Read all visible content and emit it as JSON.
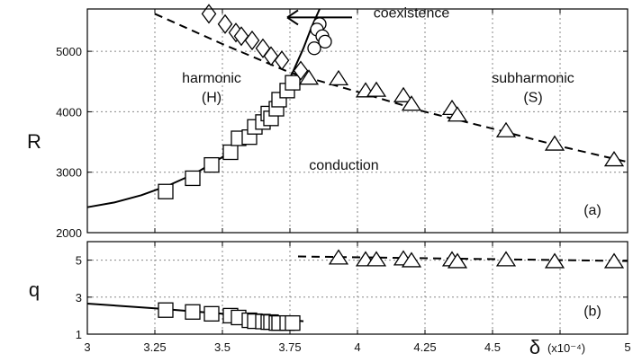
{
  "chart_data": [
    {
      "panel": "top",
      "type": "scatter",
      "ylabel": "R",
      "panel_label": "(a)",
      "xlim": [
        3.0,
        5.0
      ],
      "ylim": [
        2000,
        5700
      ],
      "x_ticks": [
        3,
        3.25,
        3.5,
        3.75,
        4,
        4.25,
        4.5,
        4.75,
        5
      ],
      "y_ticks": [
        2000,
        3000,
        4000,
        5000
      ],
      "grid": true,
      "annotations": [
        {
          "text": "coexistence",
          "x": 4.2,
          "y": 5560
        },
        {
          "text": "harmonic",
          "x": 3.46,
          "y": 4480
        },
        {
          "text": "(H)",
          "x": 3.46,
          "y": 4160
        },
        {
          "text": "subharmonic",
          "x": 4.65,
          "y": 4480
        },
        {
          "text": "(S)",
          "x": 4.65,
          "y": 4160
        },
        {
          "text": "conduction",
          "x": 3.95,
          "y": 3040
        }
      ],
      "series": [
        {
          "marker": "square",
          "x": [
            3.29,
            3.39,
            3.46,
            3.53,
            3.56,
            3.6,
            3.62,
            3.65,
            3.67,
            3.68,
            3.7,
            3.71,
            3.74,
            3.76
          ],
          "y": [
            2680,
            2900,
            3120,
            3330,
            3560,
            3580,
            3750,
            3830,
            3970,
            3890,
            4050,
            4200,
            4350,
            4480
          ]
        },
        {
          "marker": "diamond",
          "x": [
            3.45,
            3.51,
            3.55,
            3.57,
            3.61,
            3.65,
            3.68,
            3.72,
            3.79
          ],
          "y": [
            5620,
            5450,
            5310,
            5250,
            5180,
            5050,
            4920,
            4850,
            4680
          ]
        },
        {
          "marker": "circle",
          "x": [
            3.86,
            3.85,
            3.87,
            3.88,
            3.84
          ],
          "y": [
            5450,
            5360,
            5250,
            5160,
            5050
          ]
        },
        {
          "marker": "triangle",
          "x": [
            3.82,
            3.93,
            4.03,
            4.07,
            4.17,
            4.2,
            4.35,
            4.37,
            4.55,
            4.73,
            4.95
          ],
          "y": [
            4550,
            4540,
            4340,
            4350,
            4260,
            4120,
            4050,
            3940,
            3680,
            3460,
            3200
          ]
        }
      ],
      "curves": [
        {
          "style": "solid",
          "x": [
            3.0,
            3.1,
            3.2,
            3.3,
            3.4,
            3.5,
            3.6,
            3.7,
            3.76,
            3.8,
            3.83,
            3.86
          ],
          "y": [
            2420,
            2500,
            2620,
            2780,
            2980,
            3250,
            3650,
            4180,
            4650,
            5050,
            5400,
            5700
          ]
        },
        {
          "style": "dashed",
          "x": [
            3.25,
            3.5,
            3.75,
            4.0,
            4.25,
            4.5,
            4.75,
            5.0
          ],
          "y": [
            5620,
            5120,
            4650,
            4330,
            4000,
            3720,
            3430,
            3170
          ]
        },
        {
          "style": "arrow",
          "x": [
            3.98,
            3.74
          ],
          "y": [
            5560,
            5560
          ]
        }
      ]
    },
    {
      "panel": "bottom",
      "type": "scatter",
      "ylabel": "q",
      "panel_label": "(b)",
      "xlim": [
        3.0,
        5.0
      ],
      "ylim": [
        1,
        6
      ],
      "x_ticks": [
        3,
        3.25,
        3.5,
        3.75,
        4,
        4.25,
        4.5,
        4.75,
        5
      ],
      "y_ticks": [
        1,
        3,
        5
      ],
      "x_tick_labels": [
        "3",
        "3.25",
        "3.5",
        "3.75",
        "4",
        "4.25",
        "4.5",
        "",
        "5"
      ],
      "xlabel": "δ",
      "xlabel_unit": "(x10⁻⁴)",
      "grid": true,
      "series": [
        {
          "marker": "square",
          "x": [
            3.29,
            3.39,
            3.46,
            3.53,
            3.56,
            3.6,
            3.62,
            3.65,
            3.67,
            3.68,
            3.7,
            3.71,
            3.74,
            3.76
          ],
          "y": [
            2.3,
            2.2,
            2.1,
            2.0,
            1.9,
            1.75,
            1.7,
            1.68,
            1.65,
            1.65,
            1.6,
            1.6,
            1.6,
            1.6
          ]
        },
        {
          "marker": "triangle",
          "x": [
            3.93,
            4.03,
            4.07,
            4.17,
            4.2,
            4.35,
            4.37,
            4.55,
            4.73,
            4.95
          ],
          "y": [
            5.1,
            5.0,
            5.0,
            5.05,
            4.95,
            5.0,
            4.9,
            5.0,
            4.9,
            4.9
          ]
        }
      ],
      "curves": [
        {
          "style": "solid",
          "x": [
            3.0,
            3.25,
            3.5,
            3.8
          ],
          "y": [
            2.65,
            2.4,
            2.1,
            1.7
          ]
        },
        {
          "style": "dashed",
          "x": [
            3.78,
            5.0
          ],
          "y": [
            5.2,
            4.95
          ]
        }
      ]
    }
  ]
}
